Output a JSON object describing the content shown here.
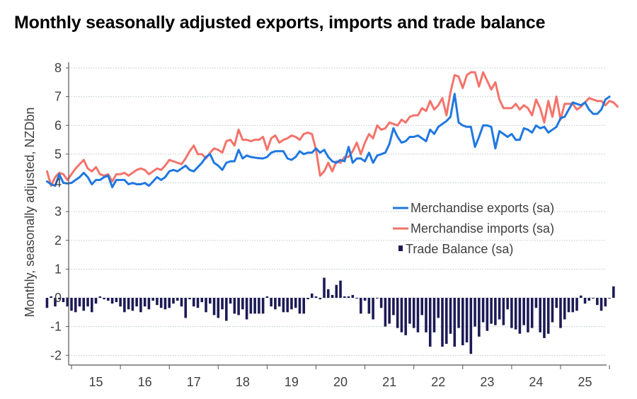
{
  "chart_data": {
    "type": "line",
    "title": "Monthly seasonally adjusted exports, imports and trade balance",
    "xlabel": "",
    "ylabel": "Monthly, seasonally adjusted, NZDbn",
    "ylim": [
      -2,
      8
    ],
    "yticks": [
      -2,
      -1,
      0,
      1,
      2,
      3,
      4,
      5,
      6,
      7,
      8
    ],
    "ytick_labels": [
      "-2",
      "-1",
      "0",
      "1",
      "2",
      "3",
      "4",
      "5",
      "6",
      "7",
      "8"
    ],
    "x_start": "2014-07",
    "x_end": "2025-06",
    "xtick_labels": [
      "15",
      "16",
      "17",
      "18",
      "19",
      "20",
      "21",
      "22",
      "23",
      "24",
      "25"
    ],
    "grid": "horizontal dotted",
    "legend_position": "center-right",
    "legend": [
      {
        "name": "Merchandise exports (sa)",
        "kind": "line",
        "color": "#1f78e0"
      },
      {
        "name": "Merchandise imports (sa)",
        "kind": "line",
        "color": "#f4736b"
      },
      {
        "name": "Trade Balance (sa)",
        "kind": "bar",
        "color": "#1c1a55"
      }
    ],
    "series": [
      {
        "name": "Merchandise exports (sa)",
        "kind": "line",
        "color": "#1f78e0",
        "values": [
          4.05,
          3.95,
          3.9,
          4.3,
          4.0,
          3.98,
          4.0,
          4.1,
          4.2,
          4.35,
          4.2,
          3.95,
          4.1,
          4.1,
          4.2,
          4.25,
          3.85,
          4.1,
          4.1,
          4.1,
          3.95,
          4.0,
          3.95,
          3.95,
          4.0,
          3.9,
          4.05,
          4.2,
          4.1,
          4.2,
          4.4,
          4.45,
          4.4,
          4.5,
          4.6,
          4.45,
          4.4,
          4.55,
          4.7,
          4.9,
          5.0,
          4.7,
          4.6,
          4.45,
          4.7,
          4.75,
          4.75,
          5.15,
          4.85,
          4.95,
          4.9,
          4.88,
          4.86,
          4.85,
          4.9,
          5.05,
          5.1,
          5.1,
          5.1,
          4.85,
          4.8,
          4.9,
          5.1,
          5.0,
          5.05,
          5.05,
          5.2,
          5.05,
          5.15,
          4.9,
          4.75,
          4.7,
          4.8,
          4.75,
          5.25,
          4.7,
          4.85,
          4.85,
          4.75,
          5.05,
          4.7,
          4.95,
          5.0,
          5.05,
          5.35,
          5.9,
          5.6,
          5.4,
          5.45,
          5.6,
          5.6,
          5.65,
          5.55,
          5.45,
          5.85,
          5.7,
          5.95,
          6.05,
          6.15,
          6.3,
          7.1,
          6.1,
          6.0,
          5.95,
          5.95,
          5.25,
          5.6,
          6.0,
          6.0,
          5.95,
          5.2,
          5.8,
          5.7,
          5.6,
          5.7,
          5.5,
          5.5,
          5.9,
          5.85,
          5.75,
          6.0,
          5.9,
          5.95,
          5.75,
          5.85,
          5.95,
          6.25,
          6.3,
          6.55,
          6.8,
          6.75,
          6.7,
          6.8,
          6.55,
          6.4,
          6.4,
          6.55,
          6.9,
          7.0
        ]
      },
      {
        "name": "Merchandise imports (sa)",
        "kind": "line",
        "color": "#f4736b",
        "values": [
          4.4,
          3.9,
          4.2,
          4.35,
          4.3,
          4.1,
          4.3,
          4.5,
          4.65,
          4.8,
          4.5,
          4.4,
          4.55,
          4.3,
          4.25,
          4.3,
          4.05,
          4.3,
          4.3,
          4.35,
          4.25,
          4.35,
          4.45,
          4.5,
          4.45,
          4.3,
          4.4,
          4.5,
          4.45,
          4.6,
          4.8,
          4.75,
          4.7,
          4.65,
          4.85,
          5.1,
          5.3,
          5.0,
          5.0,
          4.85,
          5.05,
          5.2,
          5.15,
          5.05,
          5.45,
          5.5,
          5.3,
          5.85,
          5.5,
          5.5,
          5.45,
          5.5,
          5.5,
          5.6,
          5.15,
          5.55,
          5.65,
          5.4,
          5.5,
          5.55,
          5.65,
          5.6,
          5.5,
          5.7,
          5.75,
          5.7,
          5.15,
          4.25,
          4.4,
          4.7,
          4.4,
          4.75,
          4.7,
          4.9,
          4.9,
          5.1,
          5.4,
          5.0,
          5.4,
          5.7,
          5.55,
          6.0,
          5.85,
          5.9,
          6.1,
          6.05,
          6.0,
          6.2,
          6.1,
          6.3,
          6.35,
          6.35,
          6.6,
          6.5,
          6.85,
          6.55,
          6.7,
          6.95,
          6.35,
          7.15,
          7.75,
          7.7,
          7.3,
          7.75,
          7.85,
          7.85,
          7.35,
          7.85,
          7.55,
          7.25,
          7.5,
          6.9,
          6.6,
          6.6,
          6.6,
          6.75,
          6.55,
          6.7,
          6.6,
          6.35,
          6.9,
          6.6,
          6.1,
          6.85,
          6.3,
          7.0,
          6.2,
          6.75,
          6.75,
          6.75,
          6.55,
          6.65,
          6.8,
          6.95,
          6.9,
          6.85,
          6.85,
          6.7,
          6.85,
          6.8,
          6.65
        ]
      },
      {
        "name": "Trade Balance (sa)",
        "kind": "bar",
        "color": "#1c1a55",
        "values": [
          -0.35,
          0.05,
          -0.3,
          -0.05,
          -0.15,
          -0.3,
          -0.45,
          -0.5,
          -0.3,
          -0.45,
          -0.3,
          -0.5,
          -0.2,
          0.05,
          -0.05,
          -0.1,
          -0.2,
          -0.15,
          -0.3,
          -0.5,
          -0.4,
          -0.45,
          -0.3,
          -0.5,
          -0.3,
          -0.4,
          -0.1,
          -0.25,
          -0.35,
          -0.4,
          -0.35,
          -0.2,
          -0.1,
          -0.3,
          -0.7,
          -0.05,
          -0.3,
          -0.35,
          -0.15,
          -0.5,
          -0.2,
          -0.6,
          -0.7,
          -0.4,
          -0.8,
          -0.2,
          -0.55,
          -0.6,
          -0.4,
          -0.75,
          -0.55,
          -0.55,
          -0.55,
          -0.55,
          0.05,
          -0.3,
          -0.4,
          -0.3,
          -0.5,
          -0.5,
          -0.4,
          -0.35,
          -0.55,
          -0.55,
          -0.05,
          0.15,
          0.05,
          -0.05,
          0.7,
          0.3,
          0.1,
          0.45,
          0.6,
          0.05,
          0.05,
          0.1,
          0.0,
          -0.55,
          -0.1,
          -0.55,
          -0.75,
          0.0,
          -0.35,
          -1.0,
          -0.9,
          -0.6,
          -1.05,
          -1.2,
          -1.3,
          -0.9,
          -1.05,
          -1.2,
          -0.6,
          -1.2,
          -1.7,
          -1.2,
          -0.7,
          -1.7,
          -1.6,
          -1.25,
          -1.7,
          -1.05,
          -1.65,
          -1.55,
          -1.95,
          -1.0,
          -1.35,
          -0.85,
          -1.15,
          -0.9,
          -0.95,
          -0.75,
          -0.95,
          -0.4,
          -1.05,
          -1.1,
          -1.25,
          -0.95,
          -1.2,
          -1.05,
          -0.35,
          -1.2,
          -1.4,
          -1.25,
          -0.85,
          -0.35,
          -1.05,
          -0.75,
          -0.5,
          -0.5,
          -0.45,
          0.08,
          -0.2,
          -0.1,
          0.0,
          -0.25,
          -0.45,
          -0.3,
          0.0,
          0.4
        ]
      }
    ]
  }
}
